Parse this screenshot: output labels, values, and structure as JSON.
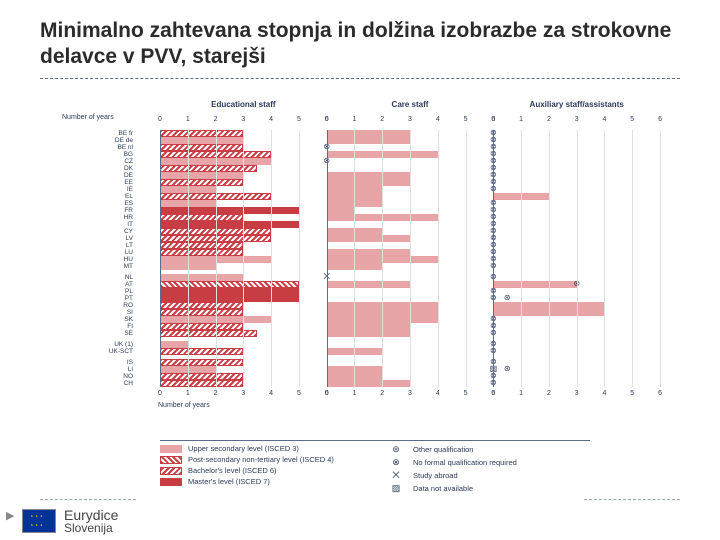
{
  "title": "Minimalno zahtevana stopnja in dolžina izobrazbe za strokovne delavce v PVV, starejši",
  "panels": [
    "Educational staff",
    "Care staff",
    "Auxiliary staff/assistants"
  ],
  "axis_label": "Number of years",
  "xmax": 6,
  "xtick_step": 1,
  "colors": {
    "light": "#e8a5a8",
    "dark": "#c83c44",
    "hatch": "#c83c44",
    "grid": "#e0e0e0",
    "axis": "#5a6b8c",
    "text": "#2b3a5c",
    "bg": "#ffffff",
    "title": "#2b2b2b"
  },
  "fontsize": {
    "title": 21,
    "panel_header": 8,
    "tick": 7,
    "row_label": 6.5,
    "legend": 7.5
  },
  "legend": {
    "left": [
      {
        "style": "bar-solid-light",
        "label": "Upper secondary level (ISCED 3)"
      },
      {
        "style": "bar-hatch-pos",
        "label": "Post-secondary non-tertiary level (ISCED 4)"
      },
      {
        "style": "bar-hatch-neg",
        "label": "Bachelor's level (ISCED 6)"
      },
      {
        "style": "bar-solid-dark",
        "label": "Master's level (ISCED 7)"
      }
    ],
    "right": [
      {
        "symbol": "⊛",
        "label": "Other qualification"
      },
      {
        "symbol": "⊗",
        "label": "No formal qualification required"
      },
      {
        "symbol": "⨉",
        "label": "Study abroad"
      },
      {
        "symbol": "▨",
        "label": "Data not available"
      }
    ]
  },
  "rows": [
    {
      "label": "BE fr",
      "p": [
        [
          {
            "s": "bar-solid-light",
            "v": 3
          },
          {
            "s": "bar-hatch-neg",
            "v": 3
          }
        ],
        [
          {
            "s": "bar-solid-light",
            "v": 3
          }
        ],
        [
          {
            "m": "⊗"
          }
        ]
      ]
    },
    {
      "label": "DE de",
      "p": [
        [
          {
            "s": "bar-solid-light",
            "v": 3
          }
        ],
        [
          {
            "s": "bar-solid-light",
            "v": 3
          }
        ],
        [
          {
            "m": "⊗"
          }
        ]
      ]
    },
    {
      "label": "BE nl",
      "p": [
        [
          {
            "s": "bar-hatch-neg",
            "v": 3
          }
        ],
        [
          {
            "m": "⊗"
          }
        ],
        [
          {
            "m": "⊗"
          }
        ]
      ]
    },
    {
      "label": "BG",
      "p": [
        [
          {
            "s": "bar-solid-light",
            "v": 4
          },
          {
            "s": "bar-hatch-neg",
            "v": 4
          }
        ],
        [
          {
            "s": "bar-solid-light",
            "v": 4
          }
        ],
        [
          {
            "m": "⊗"
          }
        ]
      ]
    },
    {
      "label": "CZ",
      "p": [
        [
          {
            "s": "bar-solid-light",
            "v": 4
          }
        ],
        [
          {
            "m": "⊗"
          }
        ],
        [
          {
            "m": "⊗"
          }
        ]
      ]
    },
    {
      "label": "DK",
      "p": [
        [
          {
            "s": "bar-hatch-neg",
            "v": 3.5
          }
        ],
        [],
        [
          {
            "m": "⊗"
          }
        ]
      ]
    },
    {
      "label": "DE",
      "p": [
        [
          {
            "s": "bar-solid-light",
            "v": 3
          }
        ],
        [
          {
            "s": "bar-solid-light",
            "v": 3
          }
        ],
        [
          {
            "m": "⊗"
          }
        ]
      ]
    },
    {
      "label": "EE",
      "p": [
        [
          {
            "s": "bar-hatch-pos",
            "v": 3
          },
          {
            "s": "bar-hatch-neg",
            "v": 3
          }
        ],
        [
          {
            "s": "bar-solid-light",
            "v": 3
          }
        ],
        [
          {
            "m": "⊗"
          }
        ]
      ]
    },
    {
      "label": "IE",
      "p": [
        [
          {
            "s": "bar-solid-light",
            "v": 2
          }
        ],
        [
          {
            "s": "bar-solid-light",
            "v": 2
          }
        ],
        [
          {
            "m": "⊗"
          }
        ]
      ]
    },
    {
      "label": "EL",
      "p": [
        [
          {
            "s": "bar-hatch-neg",
            "v": 4
          }
        ],
        [
          {
            "s": "bar-solid-light",
            "v": 2
          }
        ],
        [
          {
            "s": "bar-solid-light",
            "v": 2
          }
        ]
      ]
    },
    {
      "label": "ES",
      "p": [
        [
          {
            "s": "bar-solid-light",
            "v": 2
          }
        ],
        [
          {
            "s": "bar-solid-light",
            "v": 2
          }
        ],
        [
          {
            "m": "⊗"
          }
        ]
      ]
    },
    {
      "label": "FR",
      "p": [
        [
          {
            "s": "bar-solid-dark",
            "v": 5
          }
        ],
        [
          {
            "s": "bar-solid-light",
            "v": 1
          }
        ],
        [
          {
            "m": "⊗"
          }
        ]
      ]
    },
    {
      "label": "HR",
      "p": [
        [
          {
            "s": "bar-hatch-neg",
            "v": 3
          }
        ],
        [
          {
            "s": "bar-solid-light",
            "v": 4
          }
        ],
        [
          {
            "m": "⊗"
          }
        ]
      ]
    },
    {
      "label": "IT",
      "p": [
        [
          {
            "s": "bar-solid-dark",
            "v": 5
          }
        ],
        [],
        [
          {
            "m": "⊗"
          }
        ]
      ]
    },
    {
      "label": "CY",
      "p": [
        [
          {
            "s": "bar-hatch-neg",
            "v": 4
          }
        ],
        [
          {
            "s": "bar-solid-light",
            "v": 2
          }
        ],
        [
          {
            "m": "⊗"
          }
        ]
      ]
    },
    {
      "label": "LV",
      "p": [
        [
          {
            "s": "bar-hatch-pos",
            "v": 2
          },
          {
            "s": "bar-hatch-neg",
            "v": 4
          }
        ],
        [
          {
            "s": "bar-solid-light",
            "v": 3
          }
        ],
        [
          {
            "m": "⊗"
          }
        ]
      ]
    },
    {
      "label": "LT",
      "p": [
        [
          {
            "s": "bar-hatch-neg",
            "v": 3
          }
        ],
        [],
        [
          {
            "m": "⊗"
          }
        ]
      ]
    },
    {
      "label": "LU",
      "p": [
        [
          {
            "s": "bar-hatch-neg",
            "v": 3
          }
        ],
        [
          {
            "s": "bar-solid-light",
            "v": 3
          }
        ],
        [
          {
            "m": "⊗"
          }
        ]
      ]
    },
    {
      "label": "HU",
      "p": [
        [
          {
            "s": "bar-solid-light",
            "v": 4
          }
        ],
        [
          {
            "s": "bar-solid-light",
            "v": 4
          }
        ],
        [
          {
            "m": "⊗"
          }
        ]
      ]
    },
    {
      "label": "MT",
      "p": [
        [
          {
            "s": "bar-solid-light",
            "v": 2
          }
        ],
        [
          {
            "s": "bar-solid-light",
            "v": 2
          }
        ],
        [
          {
            "m": "⊗"
          }
        ]
      ]
    },
    {
      "gap": true
    },
    {
      "label": "NL",
      "p": [
        [
          {
            "s": "bar-solid-light",
            "v": 3
          }
        ],
        [
          {
            "m": "⨉"
          }
        ],
        [
          {
            "m": "⊗"
          }
        ]
      ]
    },
    {
      "label": "AT",
      "p": [
        [
          {
            "s": "bar-hatch-pos",
            "v": 5
          }
        ],
        [
          {
            "s": "bar-solid-light",
            "v": 3
          }
        ],
        [
          {
            "s": "bar-solid-light",
            "v": 3
          },
          {
            "m": "⊛",
            "mv": 3
          }
        ]
      ]
    },
    {
      "label": "PL",
      "p": [
        [
          {
            "s": "bar-solid-dark",
            "v": 5
          }
        ],
        [],
        [
          {
            "m": "⊗"
          }
        ]
      ]
    },
    {
      "label": "PT",
      "p": [
        [
          {
            "s": "bar-solid-dark",
            "v": 5
          }
        ],
        [],
        [
          {
            "m": "⊗"
          },
          {
            "m": "⊛",
            "mv": 0.5
          }
        ]
      ]
    },
    {
      "label": "RO",
      "p": [
        [
          {
            "s": "bar-hatch-neg",
            "v": 3
          }
        ],
        [
          {
            "s": "bar-solid-light",
            "v": 4
          }
        ],
        [
          {
            "s": "bar-solid-light",
            "v": 4
          }
        ]
      ]
    },
    {
      "label": "SI",
      "p": [
        [
          {
            "s": "bar-hatch-neg",
            "v": 3
          }
        ],
        [
          {
            "s": "bar-solid-light",
            "v": 4
          }
        ],
        [
          {
            "s": "bar-solid-light",
            "v": 4
          }
        ]
      ]
    },
    {
      "label": "SK",
      "p": [
        [
          {
            "s": "bar-solid-light",
            "v": 4
          }
        ],
        [
          {
            "s": "bar-solid-light",
            "v": 4
          }
        ],
        [
          {
            "m": "⊗"
          }
        ]
      ]
    },
    {
      "label": "FI",
      "p": [
        [
          {
            "s": "bar-hatch-neg",
            "v": 3
          }
        ],
        [
          {
            "s": "bar-solid-light",
            "v": 3
          }
        ],
        [
          {
            "m": "⊗"
          }
        ]
      ]
    },
    {
      "label": "SE",
      "p": [
        [
          {
            "s": "bar-hatch-neg",
            "v": 3.5
          }
        ],
        [
          {
            "s": "bar-solid-light",
            "v": 3
          }
        ],
        [
          {
            "m": "⊗"
          }
        ]
      ]
    },
    {
      "gap": true
    },
    {
      "label": "UK (1)",
      "p": [
        [
          {
            "s": "bar-solid-light",
            "v": 1
          }
        ],
        [],
        [
          {
            "m": "⊗"
          }
        ]
      ]
    },
    {
      "label": "UK-SCT",
      "p": [
        [
          {
            "s": "bar-hatch-neg",
            "v": 3
          }
        ],
        [
          {
            "s": "bar-solid-light",
            "v": 2
          }
        ],
        [
          {
            "m": "⊗"
          }
        ]
      ]
    },
    {
      "gap": true
    },
    {
      "label": "IS",
      "p": [
        [
          {
            "s": "bar-hatch-neg",
            "v": 3
          }
        ],
        [],
        [
          {
            "m": "⊗"
          }
        ]
      ]
    },
    {
      "label": "LI",
      "p": [
        [
          {
            "s": "bar-solid-light",
            "v": 2
          }
        ],
        [
          {
            "s": "bar-solid-light",
            "v": 2
          }
        ],
        [
          {
            "m": "▨"
          },
          {
            "m": "⊛",
            "mv": 0.5
          }
        ]
      ]
    },
    {
      "label": "NO",
      "p": [
        [
          {
            "s": "bar-hatch-neg",
            "v": 3
          }
        ],
        [
          {
            "s": "bar-solid-light",
            "v": 2
          }
        ],
        [
          {
            "m": "⊗"
          }
        ]
      ]
    },
    {
      "label": "CH",
      "p": [
        [
          {
            "s": "bar-hatch-neg",
            "v": 3
          }
        ],
        [
          {
            "s": "bar-solid-light",
            "v": 3
          }
        ],
        [
          {
            "m": "⊗"
          }
        ]
      ]
    }
  ],
  "footer": {
    "line1": "Eurydice",
    "line2": "Slovenija"
  }
}
